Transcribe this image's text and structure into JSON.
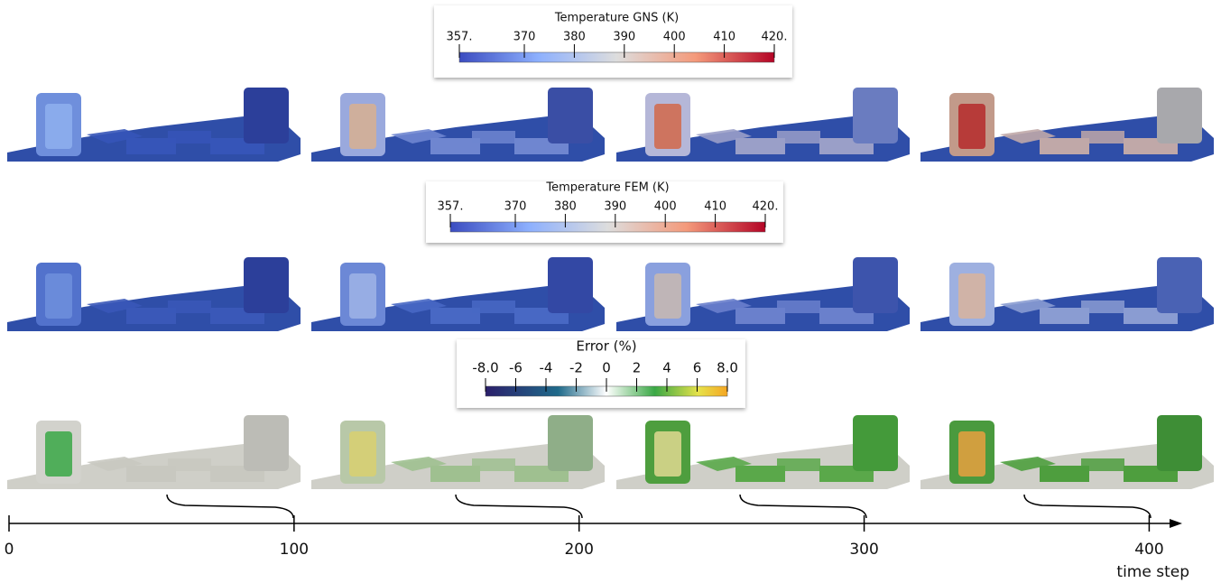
{
  "colorbars": [
    {
      "title": "Temperature GNS (K)",
      "range": [
        357,
        420
      ],
      "ticks": [
        {
          "value": 357,
          "label": "357."
        },
        370,
        380,
        390,
        400,
        410,
        {
          "value": 420,
          "label": "420."
        }
      ]
    },
    {
      "title": "Temperature FEM (K)",
      "range": [
        357,
        420
      ],
      "ticks": [
        {
          "value": 357,
          "label": "357."
        },
        370,
        380,
        390,
        400,
        410,
        {
          "value": 420,
          "label": "420."
        }
      ]
    },
    {
      "title": "Error (%)",
      "range": [
        -8,
        8
      ],
      "ticks": [
        {
          "value": -8,
          "label": "-8.0"
        },
        -6,
        -4,
        -2,
        0,
        2,
        4,
        6,
        {
          "value": 8,
          "label": "8.0"
        }
      ]
    }
  ],
  "time_axis": {
    "label": "time step",
    "xlim": [
      0,
      410
    ],
    "xticks": [
      0,
      100,
      200,
      300,
      400
    ]
  }
}
